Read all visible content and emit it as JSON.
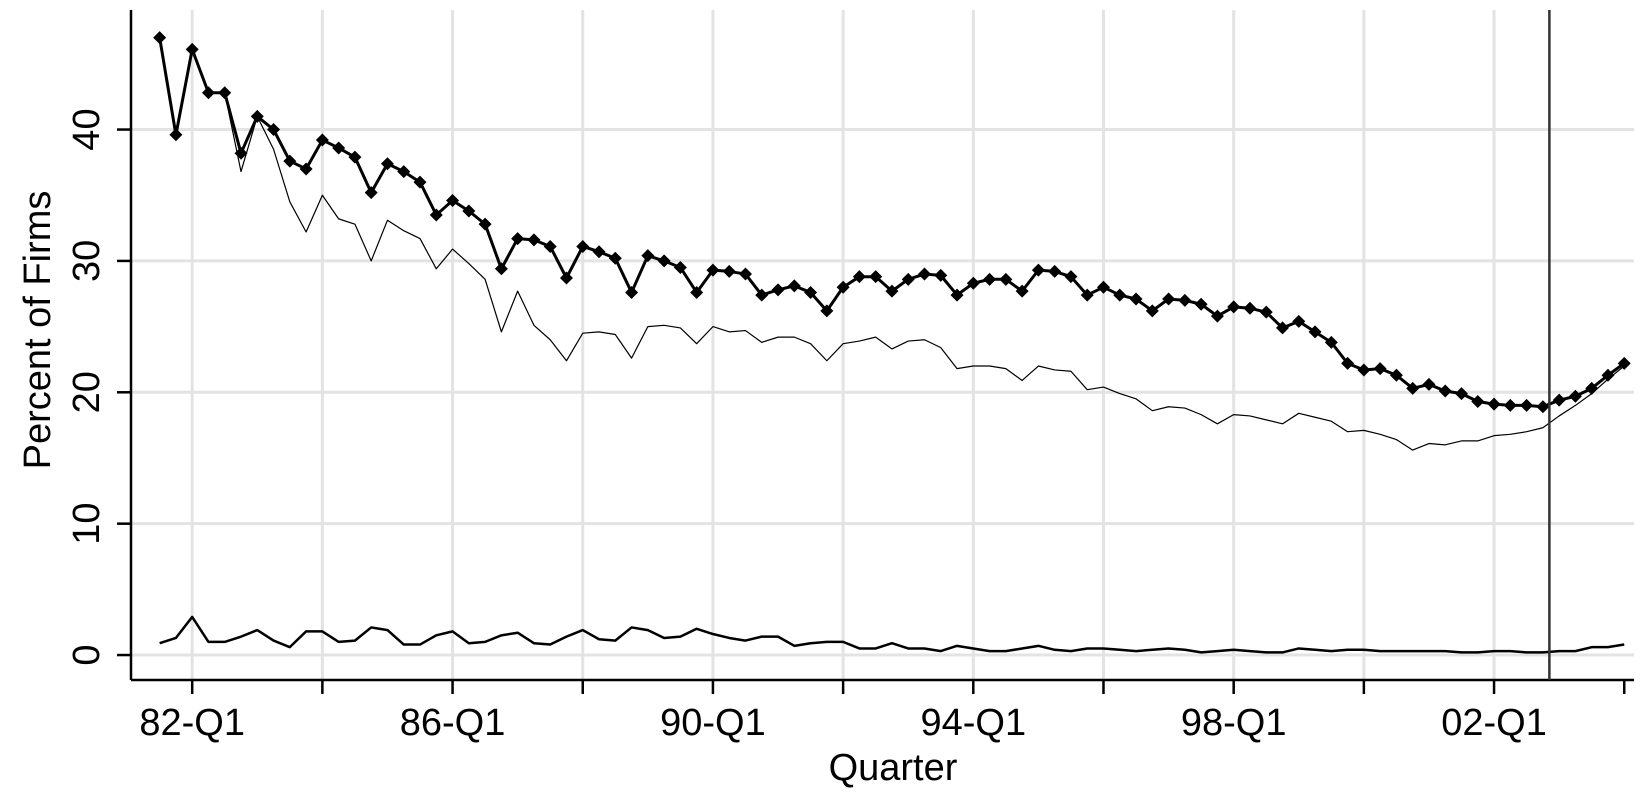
{
  "chart_data": {
    "type": "line",
    "y_label": "Percent of Firms",
    "x_label": "Quarter",
    "xlim": [
      1981.06,
      2004.15
    ],
    "ylim": [
      -1.9,
      49.1
    ],
    "xticks": [
      {
        "value": 1982,
        "label": "82-Q1"
      },
      {
        "value": 1986,
        "label": "86-Q1"
      },
      {
        "value": 1990,
        "label": "90-Q1"
      },
      {
        "value": 1994,
        "label": "94-Q1"
      },
      {
        "value": 1998,
        "label": "98-Q1"
      },
      {
        "value": 2002,
        "label": "02-Q1"
      }
    ],
    "xminor": [
      1984,
      1988,
      1992,
      1996,
      2000,
      2004
    ],
    "yticks": [
      0,
      10,
      20,
      30,
      40
    ],
    "grid": true,
    "vline": 2002.85,
    "x": [
      1981.5,
      1981.75,
      1982,
      1982.25,
      1982.5,
      1982.75,
      1983,
      1983.25,
      1983.5,
      1983.75,
      1984,
      1984.25,
      1984.5,
      1984.75,
      1985,
      1985.25,
      1985.5,
      1985.75,
      1986,
      1986.25,
      1986.5,
      1986.75,
      1987,
      1987.25,
      1987.5,
      1987.75,
      1988,
      1988.25,
      1988.5,
      1988.75,
      1989,
      1989.25,
      1989.5,
      1989.75,
      1990,
      1990.25,
      1990.5,
      1990.75,
      1991,
      1991.25,
      1991.5,
      1991.75,
      1992,
      1992.25,
      1992.5,
      1992.75,
      1993,
      1993.25,
      1993.5,
      1993.75,
      1994,
      1994.25,
      1994.5,
      1994.75,
      1995,
      1995.25,
      1995.5,
      1995.75,
      1996,
      1996.25,
      1996.5,
      1996.75,
      1997,
      1997.25,
      1997.5,
      1997.75,
      1998,
      1998.25,
      1998.5,
      1998.75,
      1999,
      1999.25,
      1999.5,
      1999.75,
      2000,
      2000.25,
      2000.5,
      2000.75,
      2001,
      2001.25,
      2001.5,
      2001.75,
      2002,
      2002.25,
      2002.5,
      2002.75,
      2003,
      2003.25,
      2003.5,
      2003.75,
      2004
    ],
    "series": [
      {
        "color": "#000000",
        "marker": "diamond",
        "line_style": "thick",
        "values": [
          47.0,
          39.6,
          46.1,
          42.8,
          42.8,
          38.2,
          41.0,
          40.0,
          37.6,
          37.0,
          39.2,
          38.6,
          37.9,
          35.2,
          37.4,
          36.8,
          36.0,
          33.5,
          34.6,
          33.8,
          32.8,
          29.4,
          31.7,
          31.6,
          31.1,
          28.7,
          31.1,
          30.7,
          30.2,
          27.6,
          30.4,
          30.0,
          29.5,
          27.6,
          29.3,
          29.2,
          29.0,
          27.4,
          27.8,
          28.1,
          27.6,
          26.2,
          28.0,
          28.8,
          28.8,
          27.7,
          28.6,
          29.0,
          28.9,
          27.4,
          28.3,
          28.6,
          28.6,
          27.7,
          29.3,
          29.2,
          28.8,
          27.4,
          28.0,
          27.4,
          27.1,
          26.2,
          27.1,
          27.0,
          26.7,
          25.8,
          26.5,
          26.4,
          26.1,
          24.9,
          25.4,
          24.6,
          23.8,
          22.2,
          21.7,
          21.8,
          21.3,
          20.3,
          20.6,
          20.1,
          19.9,
          19.3,
          19.1,
          19.0,
          19.0,
          18.9,
          19.4,
          19.7,
          20.3,
          21.3,
          22.2
        ]
      },
      {
        "color": "#000000",
        "line_style": "thin",
        "values": [
          47.0,
          39.6,
          46.1,
          42.8,
          42.8,
          36.8,
          41.0,
          38.5,
          34.5,
          32.2,
          35.0,
          33.2,
          32.8,
          30.0,
          33.1,
          32.3,
          31.7,
          29.4,
          30.9,
          29.8,
          28.6,
          24.6,
          27.7,
          25.1,
          24.0,
          22.4,
          24.5,
          24.6,
          24.4,
          22.6,
          25.0,
          25.1,
          24.9,
          23.7,
          25.0,
          24.6,
          24.7,
          23.8,
          24.2,
          24.2,
          23.7,
          22.4,
          23.7,
          23.9,
          24.2,
          23.3,
          23.9,
          24.0,
          23.4,
          21.8,
          22.0,
          22.0,
          21.8,
          20.9,
          22.0,
          21.7,
          21.6,
          20.2,
          20.4,
          19.9,
          19.5,
          18.6,
          18.9,
          18.8,
          18.3,
          17.6,
          18.3,
          18.2,
          17.9,
          17.6,
          18.4,
          18.1,
          17.8,
          17.0,
          17.1,
          16.8,
          16.4,
          15.6,
          16.1,
          16.0,
          16.3,
          16.3,
          16.7,
          16.8,
          17.0,
          17.3,
          18.2,
          19.0,
          19.9,
          21.0,
          22.0
        ]
      },
      {
        "color": "#000000",
        "line_style": "medium",
        "values": [
          0.9,
          1.3,
          2.9,
          1.0,
          1.0,
          1.4,
          1.9,
          1.1,
          0.6,
          1.8,
          1.8,
          1.0,
          1.1,
          2.1,
          1.9,
          0.8,
          0.8,
          1.5,
          1.8,
          0.9,
          1.0,
          1.5,
          1.7,
          0.9,
          0.8,
          1.4,
          1.9,
          1.2,
          1.1,
          2.1,
          1.9,
          1.3,
          1.4,
          2.0,
          1.6,
          1.3,
          1.1,
          1.4,
          1.4,
          0.7,
          0.9,
          1.0,
          1.0,
          0.5,
          0.5,
          0.9,
          0.5,
          0.5,
          0.3,
          0.7,
          0.5,
          0.3,
          0.3,
          0.5,
          0.7,
          0.4,
          0.3,
          0.5,
          0.5,
          0.4,
          0.3,
          0.4,
          0.5,
          0.4,
          0.2,
          0.3,
          0.4,
          0.3,
          0.2,
          0.2,
          0.5,
          0.4,
          0.3,
          0.4,
          0.4,
          0.3,
          0.3,
          0.3,
          0.3,
          0.3,
          0.2,
          0.2,
          0.3,
          0.3,
          0.2,
          0.2,
          0.3,
          0.3,
          0.6,
          0.6,
          0.8
        ]
      }
    ]
  }
}
